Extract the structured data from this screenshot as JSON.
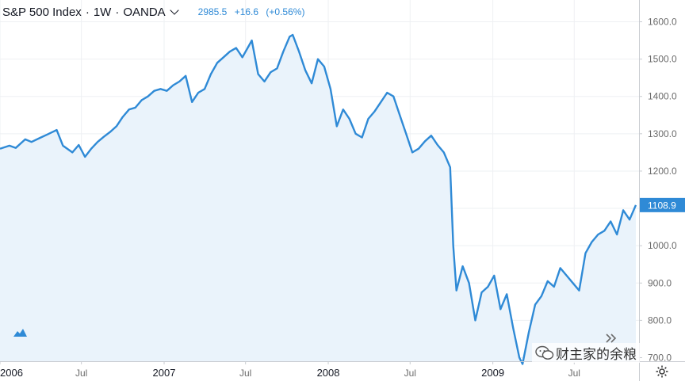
{
  "header": {
    "symbol": "S&P 500 Index",
    "interval": "1W",
    "source": "OANDA",
    "separator": "·",
    "price": "2985.5",
    "change": "+16.6",
    "change_pct": "(+0.56%)"
  },
  "watermark": {
    "text": "财主家的余粮",
    "icon": "wechat-icon"
  },
  "colors": {
    "line": "#2f8ad6",
    "area": "#eaf3fb",
    "grid": "#eef0f3",
    "axis": "#6b6b6b",
    "text": "#131722",
    "quote": "#2f8ad6"
  },
  "chart_data": {
    "type": "line",
    "title": "S&P 500 Index · 1W · OANDA",
    "x_tick_labels": [
      "2006",
      "Jul",
      "2007",
      "Jul",
      "2008",
      "Jul",
      "2009",
      "Jul"
    ],
    "x_tick_dates": [
      "2006-01-01",
      "2006-07-01",
      "2007-01-01",
      "2007-07-01",
      "2008-01-01",
      "2008-07-01",
      "2009-01-01",
      "2009-07-01"
    ],
    "x_range": [
      "2006-01-01",
      "2009-11-15"
    ],
    "y_ticks": [
      700,
      800,
      900,
      1000,
      1100,
      1200,
      1300,
      1400,
      1500,
      1600
    ],
    "y_tick_labels": [
      "700.0",
      "800.0",
      "900.0",
      "1000.0",
      "1100.0",
      "1200.0",
      "1300.0",
      "1400.0",
      "1500.0",
      "1600.0"
    ],
    "ylim": [
      635,
      1640
    ],
    "last_value": 1108.9,
    "last_value_label": "1108.9",
    "grid": true,
    "series": [
      {
        "points": [
          [
            "2006-01-01",
            1260
          ],
          [
            "2006-01-22",
            1268
          ],
          [
            "2006-02-05",
            1262
          ],
          [
            "2006-02-26",
            1285
          ],
          [
            "2006-03-12",
            1278
          ],
          [
            "2006-04-02",
            1290
          ],
          [
            "2006-04-16",
            1298
          ],
          [
            "2006-05-07",
            1310
          ],
          [
            "2006-05-21",
            1268
          ],
          [
            "2006-06-11",
            1250
          ],
          [
            "2006-06-25",
            1270
          ],
          [
            "2006-07-09",
            1238
          ],
          [
            "2006-07-23",
            1260
          ],
          [
            "2006-08-06",
            1278
          ],
          [
            "2006-08-20",
            1292
          ],
          [
            "2006-09-03",
            1305
          ],
          [
            "2006-09-17",
            1320
          ],
          [
            "2006-10-01",
            1345
          ],
          [
            "2006-10-15",
            1365
          ],
          [
            "2006-10-29",
            1370
          ],
          [
            "2006-11-12",
            1390
          ],
          [
            "2006-11-26",
            1400
          ],
          [
            "2006-12-10",
            1415
          ],
          [
            "2006-12-24",
            1420
          ],
          [
            "2007-01-07",
            1415
          ],
          [
            "2007-01-21",
            1430
          ],
          [
            "2007-02-04",
            1440
          ],
          [
            "2007-02-18",
            1455
          ],
          [
            "2007-03-04",
            1385
          ],
          [
            "2007-03-18",
            1410
          ],
          [
            "2007-04-01",
            1420
          ],
          [
            "2007-04-15",
            1460
          ],
          [
            "2007-04-29",
            1490
          ],
          [
            "2007-05-13",
            1505
          ],
          [
            "2007-05-27",
            1520
          ],
          [
            "2007-06-10",
            1530
          ],
          [
            "2007-06-24",
            1505
          ],
          [
            "2007-07-08",
            1535
          ],
          [
            "2007-07-15",
            1550
          ],
          [
            "2007-07-29",
            1460
          ],
          [
            "2007-08-12",
            1440
          ],
          [
            "2007-08-26",
            1465
          ],
          [
            "2007-09-09",
            1475
          ],
          [
            "2007-09-23",
            1520
          ],
          [
            "2007-10-07",
            1560
          ],
          [
            "2007-10-14",
            1565
          ],
          [
            "2007-10-28",
            1520
          ],
          [
            "2007-11-11",
            1470
          ],
          [
            "2007-11-25",
            1435
          ],
          [
            "2007-12-09",
            1500
          ],
          [
            "2007-12-23",
            1480
          ],
          [
            "2008-01-06",
            1420
          ],
          [
            "2008-01-20",
            1320
          ],
          [
            "2008-02-03",
            1365
          ],
          [
            "2008-02-17",
            1340
          ],
          [
            "2008-03-02",
            1300
          ],
          [
            "2008-03-16",
            1290
          ],
          [
            "2008-03-30",
            1340
          ],
          [
            "2008-04-13",
            1360
          ],
          [
            "2008-04-27",
            1385
          ],
          [
            "2008-05-11",
            1410
          ],
          [
            "2008-05-25",
            1400
          ],
          [
            "2008-06-08",
            1350
          ],
          [
            "2008-06-22",
            1300
          ],
          [
            "2008-07-06",
            1250
          ],
          [
            "2008-07-20",
            1260
          ],
          [
            "2008-08-03",
            1280
          ],
          [
            "2008-08-17",
            1295
          ],
          [
            "2008-08-31",
            1270
          ],
          [
            "2008-09-14",
            1250
          ],
          [
            "2008-09-28",
            1210
          ],
          [
            "2008-10-05",
            1000
          ],
          [
            "2008-10-12",
            880
          ],
          [
            "2008-10-26",
            945
          ],
          [
            "2008-11-09",
            900
          ],
          [
            "2008-11-23",
            800
          ],
          [
            "2008-12-07",
            875
          ],
          [
            "2008-12-21",
            890
          ],
          [
            "2009-01-04",
            920
          ],
          [
            "2009-01-18",
            830
          ],
          [
            "2009-02-01",
            870
          ],
          [
            "2009-02-15",
            780
          ],
          [
            "2009-03-01",
            700
          ],
          [
            "2009-03-08",
            683
          ],
          [
            "2009-03-22",
            768
          ],
          [
            "2009-04-05",
            842
          ],
          [
            "2009-04-19",
            865
          ],
          [
            "2009-05-03",
            905
          ],
          [
            "2009-05-17",
            890
          ],
          [
            "2009-05-31",
            940
          ],
          [
            "2009-06-14",
            920
          ],
          [
            "2009-06-28",
            900
          ],
          [
            "2009-07-12",
            880
          ],
          [
            "2009-07-26",
            980
          ],
          [
            "2009-08-09",
            1010
          ],
          [
            "2009-08-23",
            1030
          ],
          [
            "2009-09-06",
            1040
          ],
          [
            "2009-09-20",
            1065
          ],
          [
            "2009-10-04",
            1030
          ],
          [
            "2009-10-18",
            1095
          ],
          [
            "2009-11-01",
            1070
          ],
          [
            "2009-11-15",
            1108.9
          ]
        ]
      }
    ]
  }
}
